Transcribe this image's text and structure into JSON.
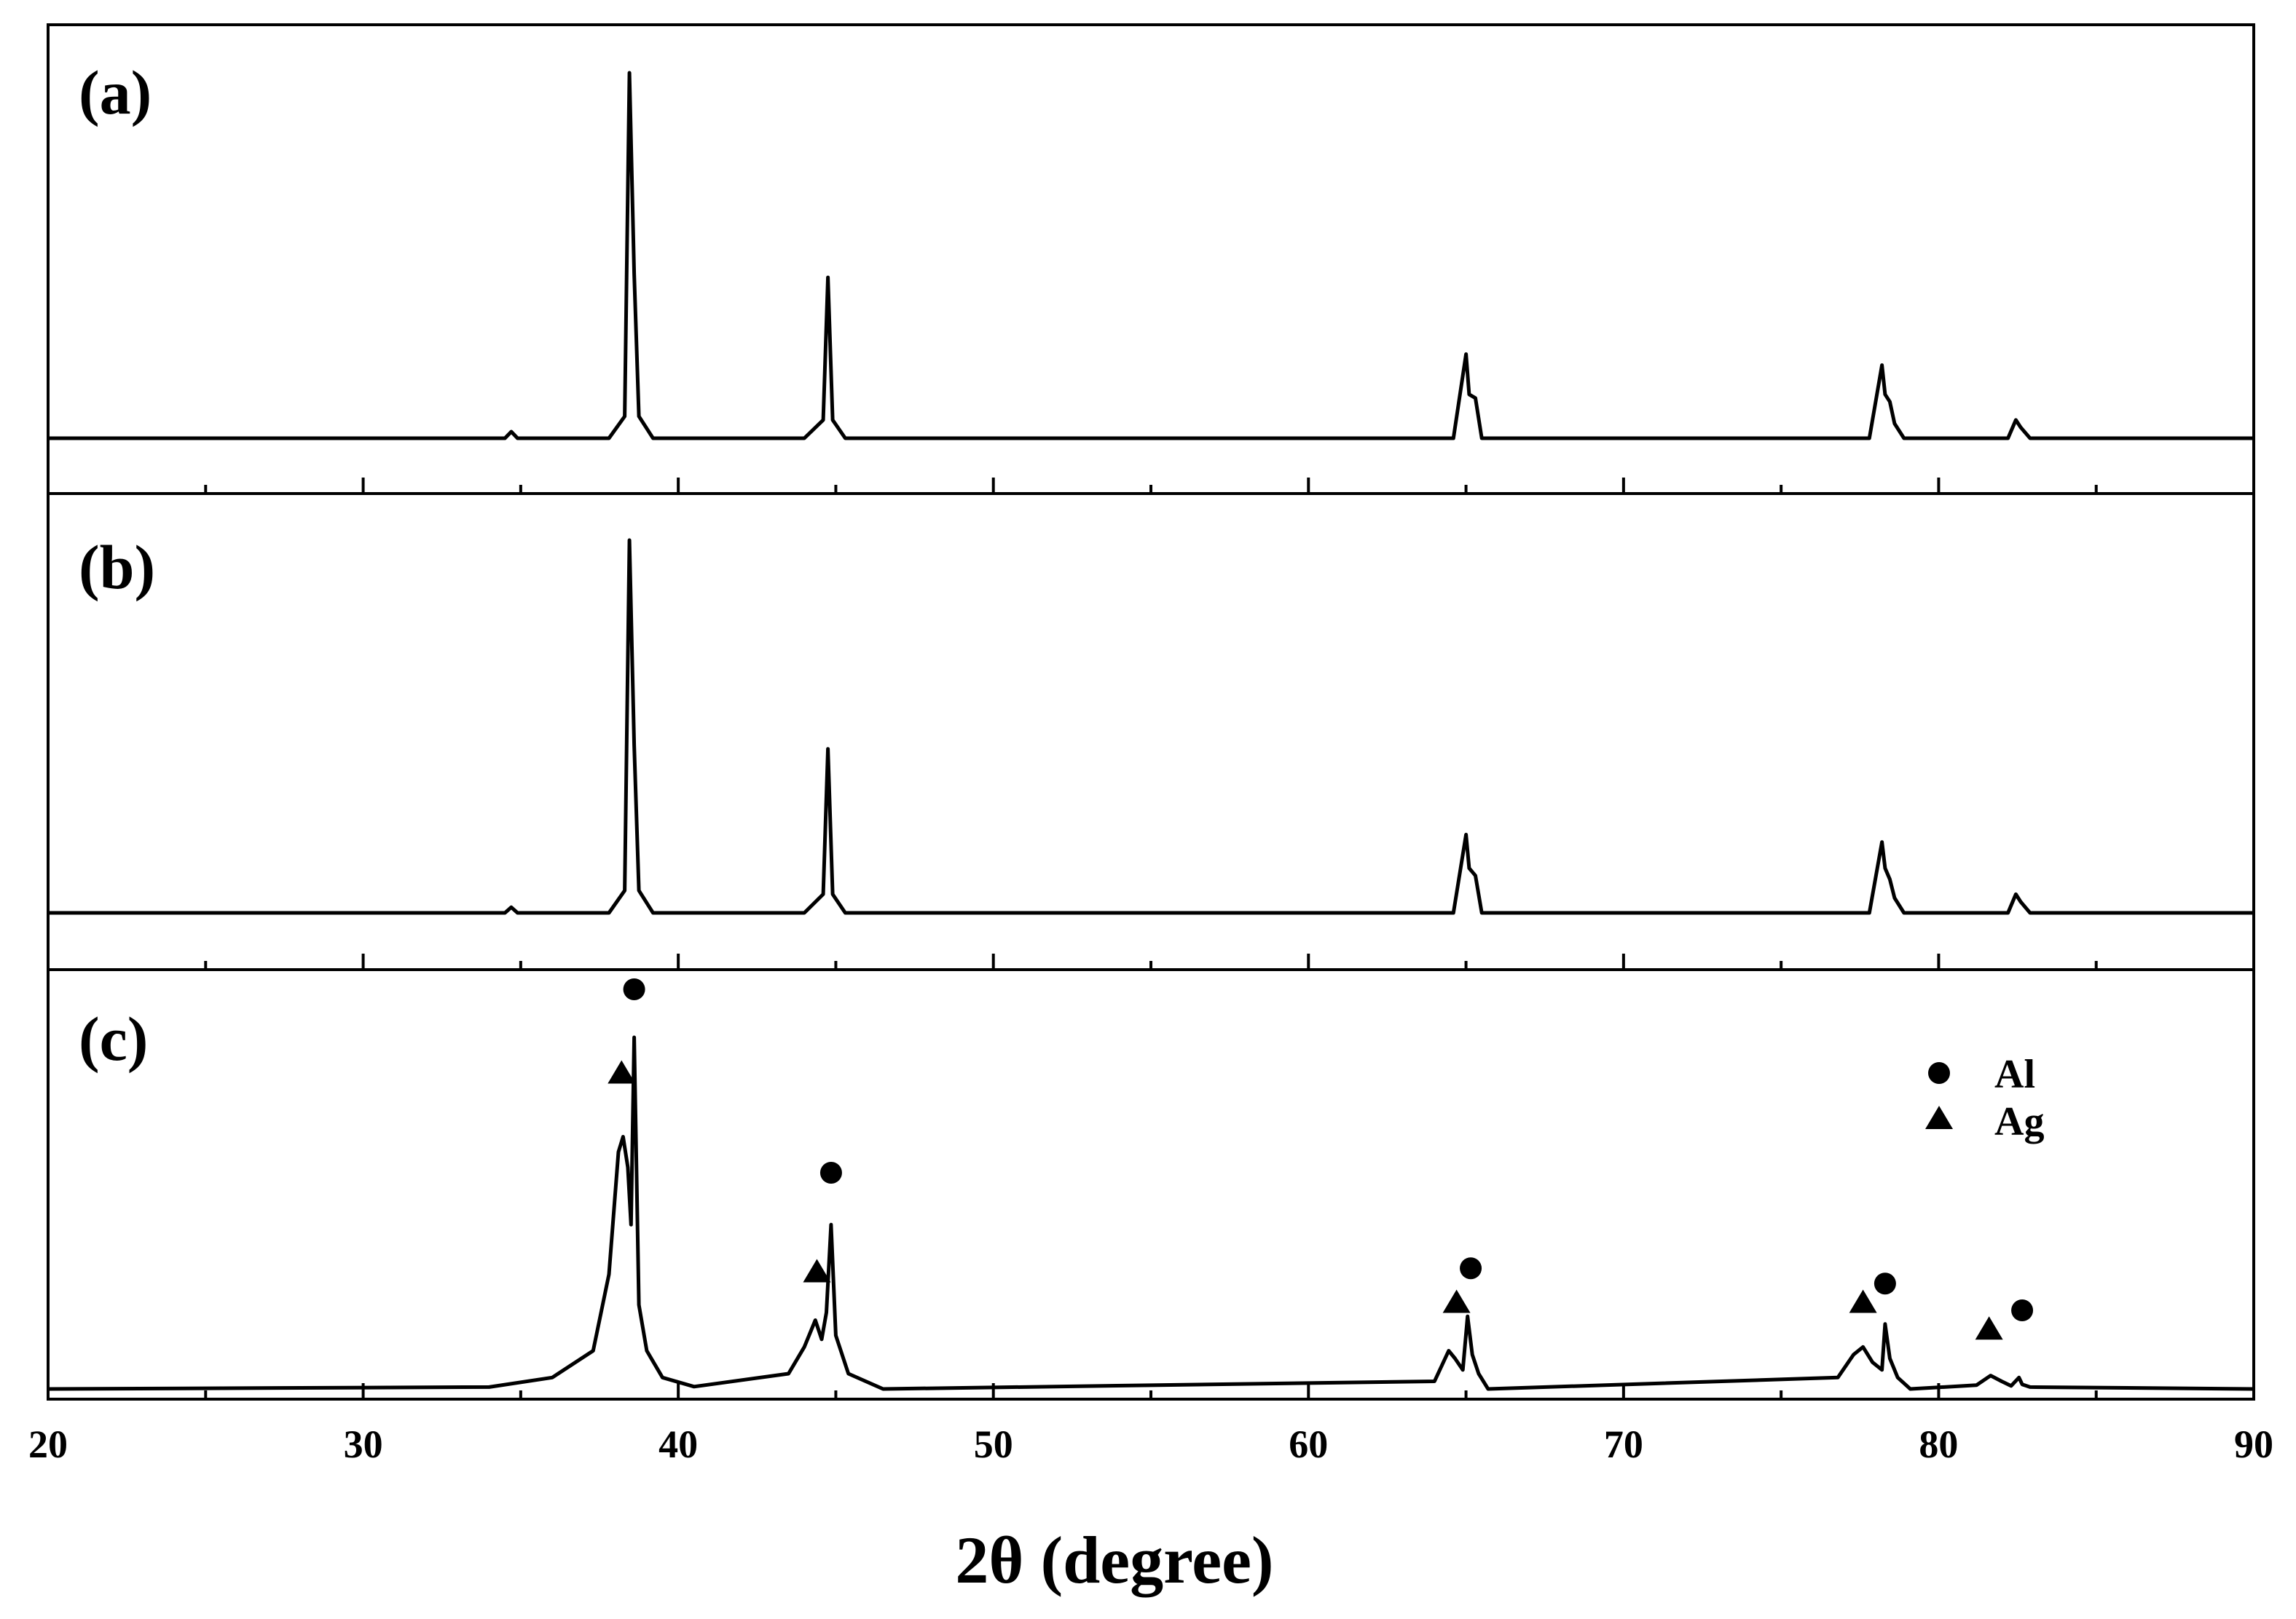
{
  "chart_data": {
    "type": "line",
    "xlabel": "2θ (degree)",
    "ylabel": "",
    "xlim": [
      20,
      90
    ],
    "x_ticks": [
      "20",
      "30",
      "40",
      "50",
      "60",
      "70",
      "80",
      "90"
    ],
    "grid": false,
    "legend_position": "top-right",
    "legend": [
      {
        "marker": "circle",
        "label": "Al"
      },
      {
        "marker": "triangle",
        "label": "Ag"
      }
    ],
    "panels": [
      {
        "label": "(a)",
        "series": [
          {
            "x": [
              20,
              34.5,
              34.7,
              34.9,
              37.8,
              38.3,
              38.45,
              38.6,
              38.75,
              39.2,
              44.0,
              44.6,
              44.75,
              44.9,
              45.3,
              64.6,
              65.0,
              65.1,
              65.3,
              65.5,
              77.8,
              78.2,
              78.3,
              78.45,
              78.6,
              78.9,
              82.2,
              82.45,
              82.6,
              82.9,
              90
            ],
            "y": [
              0,
              0,
              0.018,
              0,
              0,
              0.06,
              1.0,
              0.45,
              0.06,
              0,
              0,
              0.05,
              0.44,
              0.05,
              0,
              0,
              0.23,
              0.12,
              0.11,
              0,
              0,
              0.2,
              0.12,
              0.1,
              0.04,
              0,
              0,
              0.05,
              0.03,
              0,
              0
            ]
          }
        ]
      },
      {
        "label": "(b)",
        "series": [
          {
            "x": [
              20,
              34.5,
              34.7,
              34.9,
              37.8,
              38.3,
              38.45,
              38.6,
              38.75,
              39.2,
              44.0,
              44.6,
              44.75,
              44.9,
              45.3,
              64.6,
              65.0,
              65.1,
              65.3,
              65.5,
              77.8,
              78.2,
              78.3,
              78.45,
              78.6,
              78.9,
              82.2,
              82.45,
              82.6,
              82.9,
              90
            ],
            "y": [
              0,
              0,
              0.015,
              0,
              0,
              0.06,
              1.0,
              0.45,
              0.06,
              0,
              0,
              0.05,
              0.44,
              0.05,
              0,
              0,
              0.21,
              0.12,
              0.1,
              0,
              0,
              0.19,
              0.12,
              0.09,
              0.04,
              0,
              0,
              0.05,
              0.03,
              0,
              0
            ]
          }
        ]
      },
      {
        "label": "(c)",
        "series": [
          {
            "x": [
              20,
              34.0,
              36.0,
              37.3,
              37.8,
              38.1,
              38.25,
              38.4,
              38.5,
              38.6,
              38.75,
              39.0,
              39.5,
              40.5,
              43.5,
              44.0,
              44.35,
              44.55,
              44.7,
              44.85,
              45.0,
              45.4,
              46.5,
              64.0,
              64.45,
              64.65,
              64.9,
              65.05,
              65.2,
              65.4,
              65.7,
              76.8,
              77.3,
              77.6,
              77.9,
              78.2,
              78.3,
              78.45,
              78.7,
              79.1,
              81.2,
              81.65,
              82.0,
              82.3,
              82.55,
              82.65,
              82.9,
              90
            ],
            "y": [
              0,
              0.005,
              0.03,
              0.1,
              0.3,
              0.62,
              0.66,
              0.58,
              0.43,
              0.92,
              0.22,
              0.1,
              0.03,
              0.006,
              0.04,
              0.11,
              0.18,
              0.13,
              0.2,
              0.43,
              0.14,
              0.04,
              0,
              0.02,
              0.1,
              0.08,
              0.05,
              0.19,
              0.09,
              0.04,
              0,
              0.03,
              0.09,
              0.11,
              0.07,
              0.05,
              0.17,
              0.08,
              0.03,
              0,
              0.01,
              0.035,
              0.02,
              0.008,
              0.03,
              0.012,
              0.005,
              0
            ]
          }
        ],
        "markers": [
          {
            "phase": "Al",
            "x": 38.6,
            "y": 1.0
          },
          {
            "phase": "Ag",
            "x": 38.2,
            "y": 0.78
          },
          {
            "phase": "Al",
            "x": 44.85,
            "y": 0.52
          },
          {
            "phase": "Ag",
            "x": 44.4,
            "y": 0.26
          },
          {
            "phase": "Al",
            "x": 65.15,
            "y": 0.27
          },
          {
            "phase": "Ag",
            "x": 64.7,
            "y": 0.18
          },
          {
            "phase": "Al",
            "x": 78.3,
            "y": 0.23
          },
          {
            "phase": "Ag",
            "x": 77.6,
            "y": 0.18
          },
          {
            "phase": "Al",
            "x": 82.65,
            "y": 0.16
          },
          {
            "phase": "Ag",
            "x": 81.6,
            "y": 0.11
          }
        ]
      }
    ]
  }
}
